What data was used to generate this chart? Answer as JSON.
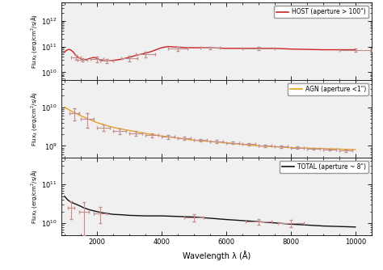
{
  "xlabel": "Wavelength λ (Å)",
  "panel1": {
    "label": "HOST (aperture > 100\")",
    "color": "#cc2222",
    "ylim": [
      5000000000.0,
      5000000000000.0
    ],
    "yticks": [
      10000000000.0,
      100000000000.0,
      1000000000000.0
    ],
    "curve_x": [
      1000,
      1050,
      1100,
      1150,
      1200,
      1250,
      1300,
      1350,
      1400,
      1500,
      1600,
      1700,
      1800,
      1900,
      2000,
      2100,
      2200,
      2400,
      2600,
      2800,
      3000,
      3200,
      3500,
      3700,
      4000,
      4200,
      4500,
      4800,
      5000,
      5500,
      6000,
      6500,
      7000,
      7500,
      8000,
      9000,
      10000
    ],
    "curve_y": [
      60000000000.0,
      70000000000.0,
      75000000000.0,
      78000000000.0,
      72000000000.0,
      65000000000.0,
      55000000000.0,
      45000000000.0,
      40000000000.0,
      34000000000.0,
      30000000000.0,
      32000000000.0,
      35000000000.0,
      38000000000.0,
      35000000000.0,
      30000000000.0,
      28000000000.0,
      28000000000.0,
      30000000000.0,
      33000000000.0,
      38000000000.0,
      45000000000.0,
      55000000000.0,
      65000000000.0,
      90000000000.0,
      100000000000.0,
      95000000000.0,
      90000000000.0,
      90000000000.0,
      90000000000.0,
      85000000000.0,
      85000000000.0,
      85000000000.0,
      85000000000.0,
      80000000000.0,
      75000000000.0,
      75000000000.0
    ],
    "data_x": [
      1350,
      1550,
      2000,
      2300,
      3000,
      3500,
      4500,
      5500,
      7000,
      10000
    ],
    "data_y": [
      38000000000.0,
      31000000000.0,
      32000000000.0,
      28000000000.0,
      35000000000.0,
      50000000000.0,
      85000000000.0,
      90000000000.0,
      85000000000.0,
      75000000000.0
    ],
    "data_xerr": [
      150,
      150,
      200,
      200,
      250,
      300,
      300,
      300,
      500,
      500
    ],
    "data_yerr_lo": [
      8000000000.0,
      5000000000.0,
      8000000000.0,
      5000000000.0,
      8000000000.0,
      12000000000.0,
      15000000000.0,
      10000000000.0,
      10000000000.0,
      10000000000.0
    ],
    "data_yerr_hi": [
      8000000000.0,
      5000000000.0,
      8000000000.0,
      5000000000.0,
      8000000000.0,
      12000000000.0,
      15000000000.0,
      10000000000.0,
      10000000000.0,
      10000000000.0
    ]
  },
  "panel2": {
    "label": "AGN (aperture <1\")",
    "color": "#e8a020",
    "ylim": [
      500000000.0,
      50000000000.0
    ],
    "yticks": [
      1000000000.0,
      10000000000.0
    ],
    "curve_x": [
      1000,
      1200,
      1500,
      2000,
      2500,
      3000,
      3500,
      4000,
      4500,
      5000,
      5500,
      6000,
      7000,
      8000,
      9000,
      10000
    ],
    "curve_y": [
      10000000000.0,
      8000000000.0,
      6000000000.0,
      4000000000.0,
      3000000000.0,
      2500000000.0,
      2100000000.0,
      1800000000.0,
      1600000000.0,
      1400000000.0,
      1300000000.0,
      1200000000.0,
      1000000000.0,
      900000000.0,
      850000000.0,
      800000000.0
    ],
    "data_x": [
      1300,
      1700,
      2200,
      2700,
      3200,
      3700,
      4200,
      4700,
      5200,
      5700,
      6200,
      6700,
      7200,
      7700,
      8200,
      8700,
      9200,
      9700
    ],
    "data_y": [
      7000000000.0,
      5000000000.0,
      3000000000.0,
      2400000000.0,
      2100000000.0,
      1900000000.0,
      1700000000.0,
      1550000000.0,
      1400000000.0,
      1300000000.0,
      1200000000.0,
      1100000000.0,
      1000000000.0,
      950000000.0,
      900000000.0,
      850000000.0,
      800000000.0,
      750000000.0
    ],
    "data_xerr": [
      150,
      200,
      200,
      200,
      200,
      200,
      200,
      200,
      200,
      200,
      200,
      200,
      200,
      200,
      200,
      200,
      200,
      200
    ],
    "data_yerr_lo": [
      2500000000.0,
      2000000000.0,
      600000000.0,
      400000000.0,
      300000000.0,
      250000000.0,
      200000000.0,
      150000000.0,
      120000000.0,
      100000000.0,
      80000000.0,
      80000000.0,
      70000000.0,
      60000000.0,
      50000000.0,
      50000000.0,
      50000000.0,
      40000000.0
    ],
    "data_yerr_hi": [
      2500000000.0,
      2000000000.0,
      600000000.0,
      400000000.0,
      300000000.0,
      250000000.0,
      200000000.0,
      150000000.0,
      120000000.0,
      100000000.0,
      80000000.0,
      80000000.0,
      70000000.0,
      60000000.0,
      50000000.0,
      50000000.0,
      50000000.0,
      40000000.0
    ]
  },
  "panel3": {
    "label": "TOTAL (aperture ~ 8\")",
    "color": "#111111",
    "ylim": [
      5000000000.0,
      500000000000.0
    ],
    "yticks": [
      10000000000.0,
      100000000000.0
    ],
    "curve_x": [
      1000,
      1100,
      1200,
      1400,
      1600,
      1800,
      2000,
      2200,
      2500,
      2800,
      3000,
      3500,
      4000,
      4500,
      5000,
      5500,
      6000,
      7000,
      8000,
      9000,
      10000
    ],
    "curve_y": [
      50000000000.0,
      40000000000.0,
      35000000000.0,
      30000000000.0,
      25000000000.0,
      22000000000.0,
      20000000000.0,
      18500000000.0,
      17000000000.0,
      16500000000.0,
      16000000000.0,
      15500000000.0,
      15500000000.0,
      15000000000.0,
      14500000000.0,
      13500000000.0,
      12500000000.0,
      11000000000.0,
      9500000000.0,
      8500000000.0,
      8000000000.0
    ],
    "data_x": [
      1200,
      1600,
      2100,
      5000,
      7000,
      8000
    ],
    "data_y": [
      25000000000.0,
      20000000000.0,
      18000000000.0,
      14000000000.0,
      11000000000.0,
      10000000000.0
    ],
    "data_xerr": [
      100,
      150,
      200,
      300,
      400,
      400
    ],
    "data_yerr_lo": [
      12000000000.0,
      15000000000.0,
      8000000000.0,
      3000000000.0,
      2000000000.0,
      2000000000.0
    ],
    "data_yerr_hi": [
      12000000000.0,
      15000000000.0,
      8000000000.0,
      3000000000.0,
      2000000000.0,
      2000000000.0
    ]
  },
  "bg_color": "#ffffff",
  "plot_bg": "#f0f0f0",
  "error_color": "#c09090",
  "xlim": [
    900,
    10500
  ]
}
